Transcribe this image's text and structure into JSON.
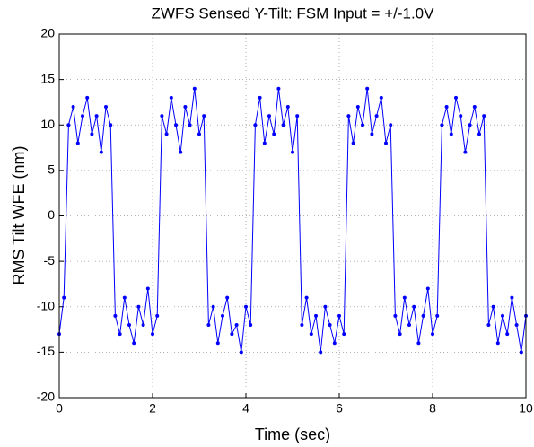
{
  "chart_data": {
    "type": "line",
    "title": "ZWFS Sensed Y-Tilt: FSM Input = +/-1.0V",
    "x_label": "Time (sec)",
    "y_label": "RMS Tilt WFE (nm)",
    "x": [
      0,
      0.1,
      0.2,
      0.3,
      0.4,
      0.5,
      0.6,
      0.7,
      0.8,
      0.9,
      1.0,
      1.1,
      1.2,
      1.3,
      1.4,
      1.5,
      1.6,
      1.7,
      1.8,
      1.9,
      2.0,
      2.1,
      2.2,
      2.3,
      2.4,
      2.5,
      2.6,
      2.7,
      2.8,
      2.9,
      3.0,
      3.1,
      3.2,
      3.3,
      3.4,
      3.5,
      3.6,
      3.7,
      3.8,
      3.9,
      4.0,
      4.1,
      4.2,
      4.3,
      4.4,
      4.5,
      4.6,
      4.7,
      4.8,
      4.9,
      5.0,
      5.1,
      5.2,
      5.3,
      5.4,
      5.5,
      5.6,
      5.7,
      5.8,
      5.9,
      6.0,
      6.1,
      6.2,
      6.3,
      6.4,
      6.5,
      6.6,
      6.7,
      6.8,
      6.9,
      7.0,
      7.1,
      7.2,
      7.3,
      7.4,
      7.5,
      7.6,
      7.7,
      7.8,
      7.9,
      8.0,
      8.1,
      8.2,
      8.3,
      8.4,
      8.5,
      8.6,
      8.7,
      8.8,
      8.9,
      9.0,
      9.1,
      9.2,
      9.3,
      9.4,
      9.5,
      9.6,
      9.7,
      9.8,
      9.9,
      10.0
    ],
    "series": [
      {
        "color": "#0000ff",
        "values": [
          -13,
          -9,
          10,
          12,
          8,
          11,
          13,
          9,
          11,
          7,
          12,
          10,
          -11,
          -13,
          -9,
          -12,
          -14,
          -10,
          -12,
          -8,
          -13,
          -11,
          11,
          9,
          13,
          10,
          7,
          12,
          10,
          14,
          9,
          11,
          -12,
          -10,
          -14,
          -11,
          -9,
          -13,
          -12,
          -15,
          -10,
          -12,
          10,
          13,
          8,
          11,
          9,
          14,
          10,
          12,
          7,
          11,
          -12,
          -9,
          -13,
          -11,
          -15,
          -10,
          -12,
          -14,
          -11,
          -13,
          11,
          8,
          12,
          10,
          14,
          9,
          11,
          13,
          8,
          10,
          -11,
          -13,
          -9,
          -12,
          -10,
          -14,
          -11,
          -8,
          -13,
          -11,
          10,
          12,
          9,
          13,
          11,
          7,
          10,
          12,
          9,
          11,
          -12,
          -10,
          -14,
          -11,
          -13,
          -9,
          -12,
          -15,
          -11
        ]
      }
    ],
    "xlim": [
      0,
      10
    ],
    "xticks": [
      0,
      2,
      4,
      6,
      8,
      10
    ],
    "ylim": [
      -20,
      20
    ],
    "yticks": [
      -20,
      -15,
      -10,
      -5,
      0,
      5,
      10,
      15,
      20
    ],
    "grid": true
  }
}
